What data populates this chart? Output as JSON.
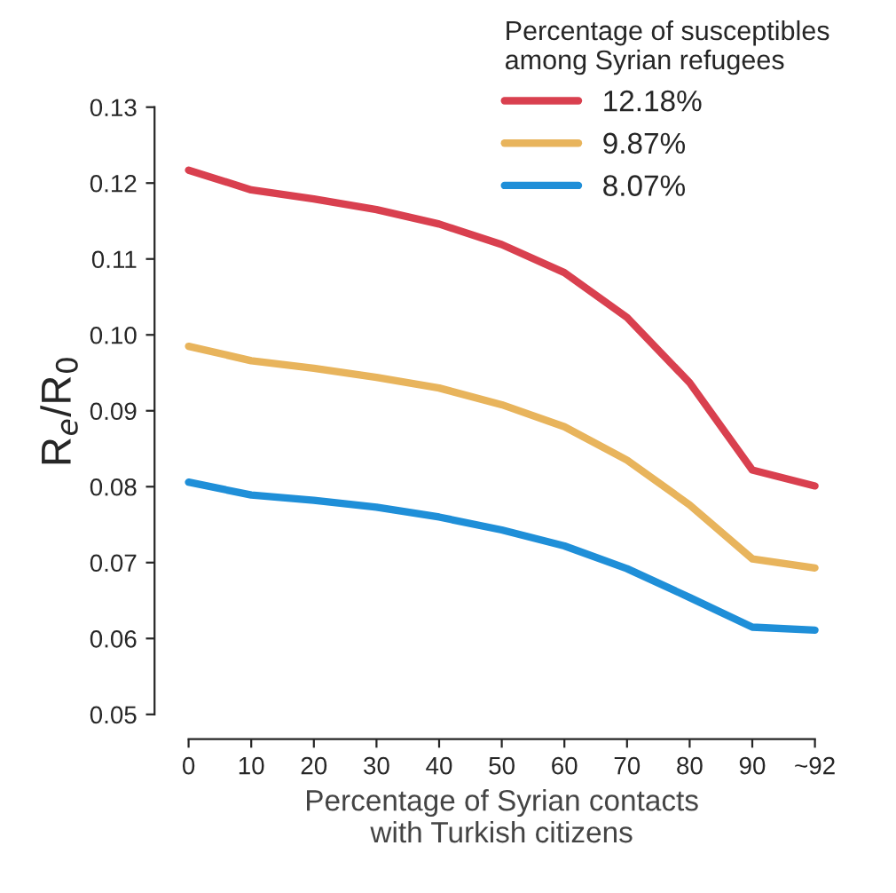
{
  "chart_data": {
    "type": "line",
    "xlabel": "Percentage of Syrian contacts\nwith Turkish citizens",
    "ylabel": "R$_{e}$/R$_{0}$",
    "legend_title": "Percentage of susceptibles\namong Syrian refugees",
    "legend": "top right",
    "grid": false,
    "marker": "none",
    "line_style": "solid",
    "categories": [
      "0",
      "10",
      "20",
      "30",
      "40",
      "50",
      "60",
      "70",
      "80",
      "90",
      "~92"
    ],
    "ylim": [
      0.05,
      0.13
    ],
    "yticks": [
      {
        "value": 0.05,
        "label": "0.05"
      },
      {
        "value": 0.06,
        "label": "0.06"
      },
      {
        "value": 0.07,
        "label": "0.07"
      },
      {
        "value": 0.08,
        "label": "0.08"
      },
      {
        "value": 0.09,
        "label": "0.09"
      },
      {
        "value": 0.1,
        "label": "0.10"
      },
      {
        "value": 0.11,
        "label": "0.11"
      },
      {
        "value": 0.12,
        "label": "0.12"
      },
      {
        "value": 0.13,
        "label": "0.13"
      }
    ],
    "series": [
      {
        "name": "12.18%",
        "color": "#d9404f",
        "values": [
          0.1217,
          0.1191,
          0.1179,
          0.1165,
          0.1146,
          0.1119,
          0.1082,
          0.1023,
          0.0937,
          0.0822,
          0.0801
        ]
      },
      {
        "name": "9.87%",
        "color": "#e8b45c",
        "values": [
          0.0985,
          0.0966,
          0.0956,
          0.0944,
          0.093,
          0.0908,
          0.0879,
          0.0835,
          0.0776,
          0.0705,
          0.0693
        ]
      },
      {
        "name": "8.07%",
        "color": "#1f8fd8",
        "values": [
          0.0806,
          0.0789,
          0.0782,
          0.0773,
          0.076,
          0.0743,
          0.0722,
          0.0692,
          0.0654,
          0.0615,
          0.0611
        ]
      }
    ]
  }
}
